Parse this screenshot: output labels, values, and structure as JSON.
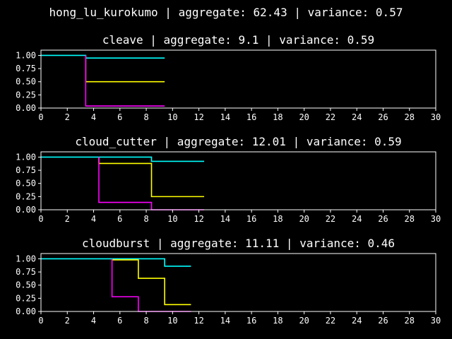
{
  "figure": {
    "title": "hong_lu_kurokumo | aggregate: 62.43 | variance: 0.57",
    "background": "#000000",
    "foreground": "#ffffff"
  },
  "chart_data": [
    {
      "type": "line",
      "step": true,
      "title": "cleave | aggregate: 9.1 | variance: 0.59",
      "xlim": [
        0,
        30
      ],
      "ylim": [
        0,
        1.1
      ],
      "xticks": [
        0,
        2,
        4,
        6,
        8,
        10,
        12,
        14,
        16,
        18,
        20,
        22,
        24,
        26,
        28,
        30
      ],
      "yticks": [
        "0.00",
        "0.25",
        "0.50",
        "0.75",
        "1.00"
      ],
      "series": [
        {
          "color": "#00ffff",
          "x": [
            0,
            3.4,
            9.4
          ],
          "y": [
            1.0,
            0.95,
            0.95
          ]
        },
        {
          "color": "#ffff00",
          "x": [
            3.4,
            3.4,
            9.4
          ],
          "y": [
            1.0,
            0.5,
            0.5
          ]
        },
        {
          "color": "#ff00ff",
          "x": [
            3.4,
            3.4,
            9.4
          ],
          "y": [
            1.0,
            0.04,
            0.04
          ]
        }
      ]
    },
    {
      "type": "line",
      "step": true,
      "title": "cloud_cutter | aggregate: 12.01 | variance: 0.59",
      "xlim": [
        0,
        30
      ],
      "ylim": [
        0,
        1.1
      ],
      "xticks": [
        0,
        2,
        4,
        6,
        8,
        10,
        12,
        14,
        16,
        18,
        20,
        22,
        24,
        26,
        28,
        30
      ],
      "yticks": [
        "0.00",
        "0.25",
        "0.50",
        "0.75",
        "1.00"
      ],
      "series": [
        {
          "color": "#00ffff",
          "x": [
            0,
            8.4,
            12.4
          ],
          "y": [
            1.0,
            0.92,
            0.92
          ]
        },
        {
          "color": "#ffff00",
          "x": [
            4.4,
            4.4,
            8.4,
            8.4,
            12.4
          ],
          "y": [
            1.0,
            0.88,
            0.88,
            0.25,
            0.25
          ]
        },
        {
          "color": "#ff00ff",
          "x": [
            4.4,
            4.4,
            8.4,
            8.4,
            12.4
          ],
          "y": [
            1.0,
            0.14,
            0.14,
            0.0,
            0.0
          ]
        }
      ]
    },
    {
      "type": "line",
      "step": true,
      "title": "cloudburst | aggregate: 11.11 | variance: 0.46",
      "xlim": [
        0,
        30
      ],
      "ylim": [
        0,
        1.1
      ],
      "xticks": [
        0,
        2,
        4,
        6,
        8,
        10,
        12,
        14,
        16,
        18,
        20,
        22,
        24,
        26,
        28,
        30
      ],
      "yticks": [
        "0.00",
        "0.25",
        "0.50",
        "0.75",
        "1.00"
      ],
      "series": [
        {
          "color": "#00ffff",
          "x": [
            0,
            9.4,
            11.4
          ],
          "y": [
            1.0,
            0.86,
            0.86
          ]
        },
        {
          "color": "#ffff00",
          "x": [
            5.4,
            5.4,
            7.4,
            7.4,
            9.4,
            9.4,
            11.4
          ],
          "y": [
            1.0,
            0.98,
            0.98,
            0.63,
            0.63,
            0.13,
            0.13
          ]
        },
        {
          "color": "#ff00ff",
          "x": [
            5.4,
            5.4,
            7.4,
            7.4,
            11.4
          ],
          "y": [
            1.0,
            0.28,
            0.28,
            0.0,
            0.0
          ]
        }
      ]
    }
  ]
}
